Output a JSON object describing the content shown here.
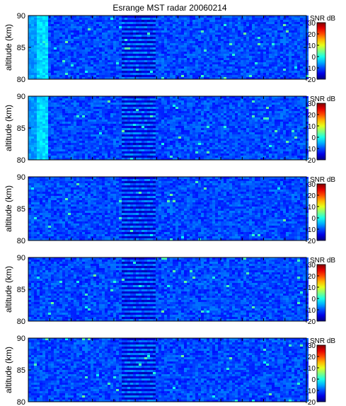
{
  "title": "Esrange MST radar 20060214",
  "chart_data": [
    {
      "type": "heatmap",
      "ylabel": "altitude (km)",
      "ylim": [
        80,
        90
      ],
      "yticks": [
        80,
        85,
        90
      ],
      "colorbar": {
        "label": "SNR dB",
        "ticks": [
          30,
          20,
          10,
          0,
          -10,
          -20
        ],
        "range": [
          -20,
          30
        ]
      }
    },
    {
      "type": "heatmap",
      "ylabel": "altitude (km)",
      "ylim": [
        80,
        90
      ],
      "yticks": [
        80,
        85,
        90
      ],
      "colorbar": {
        "label": "SNR dB",
        "ticks": [
          30,
          20,
          10,
          0,
          -10,
          -20
        ],
        "range": [
          -20,
          30
        ]
      }
    },
    {
      "type": "heatmap",
      "ylabel": "altitude (km)",
      "ylim": [
        80,
        90
      ],
      "yticks": [
        80,
        85,
        90
      ],
      "colorbar": {
        "label": "SNR dB",
        "ticks": [
          30,
          20,
          10,
          0,
          -10,
          -20
        ],
        "range": [
          -20,
          30
        ]
      }
    },
    {
      "type": "heatmap",
      "ylabel": "altitude (km)",
      "ylim": [
        80,
        90
      ],
      "yticks": [
        80,
        85,
        90
      ],
      "colorbar": {
        "label": "SNR dB",
        "ticks": [
          30,
          20,
          10,
          0,
          -10,
          -20
        ],
        "range": [
          -20,
          30
        ]
      }
    },
    {
      "type": "heatmap",
      "ylabel": "altitude (km)",
      "ylim": [
        80,
        90
      ],
      "yticks": [
        80,
        85,
        90
      ],
      "colorbar": {
        "label": "SNR dB",
        "ticks": [
          30,
          20,
          10,
          0,
          -10,
          -20
        ],
        "range": [
          -20,
          30
        ]
      }
    }
  ]
}
